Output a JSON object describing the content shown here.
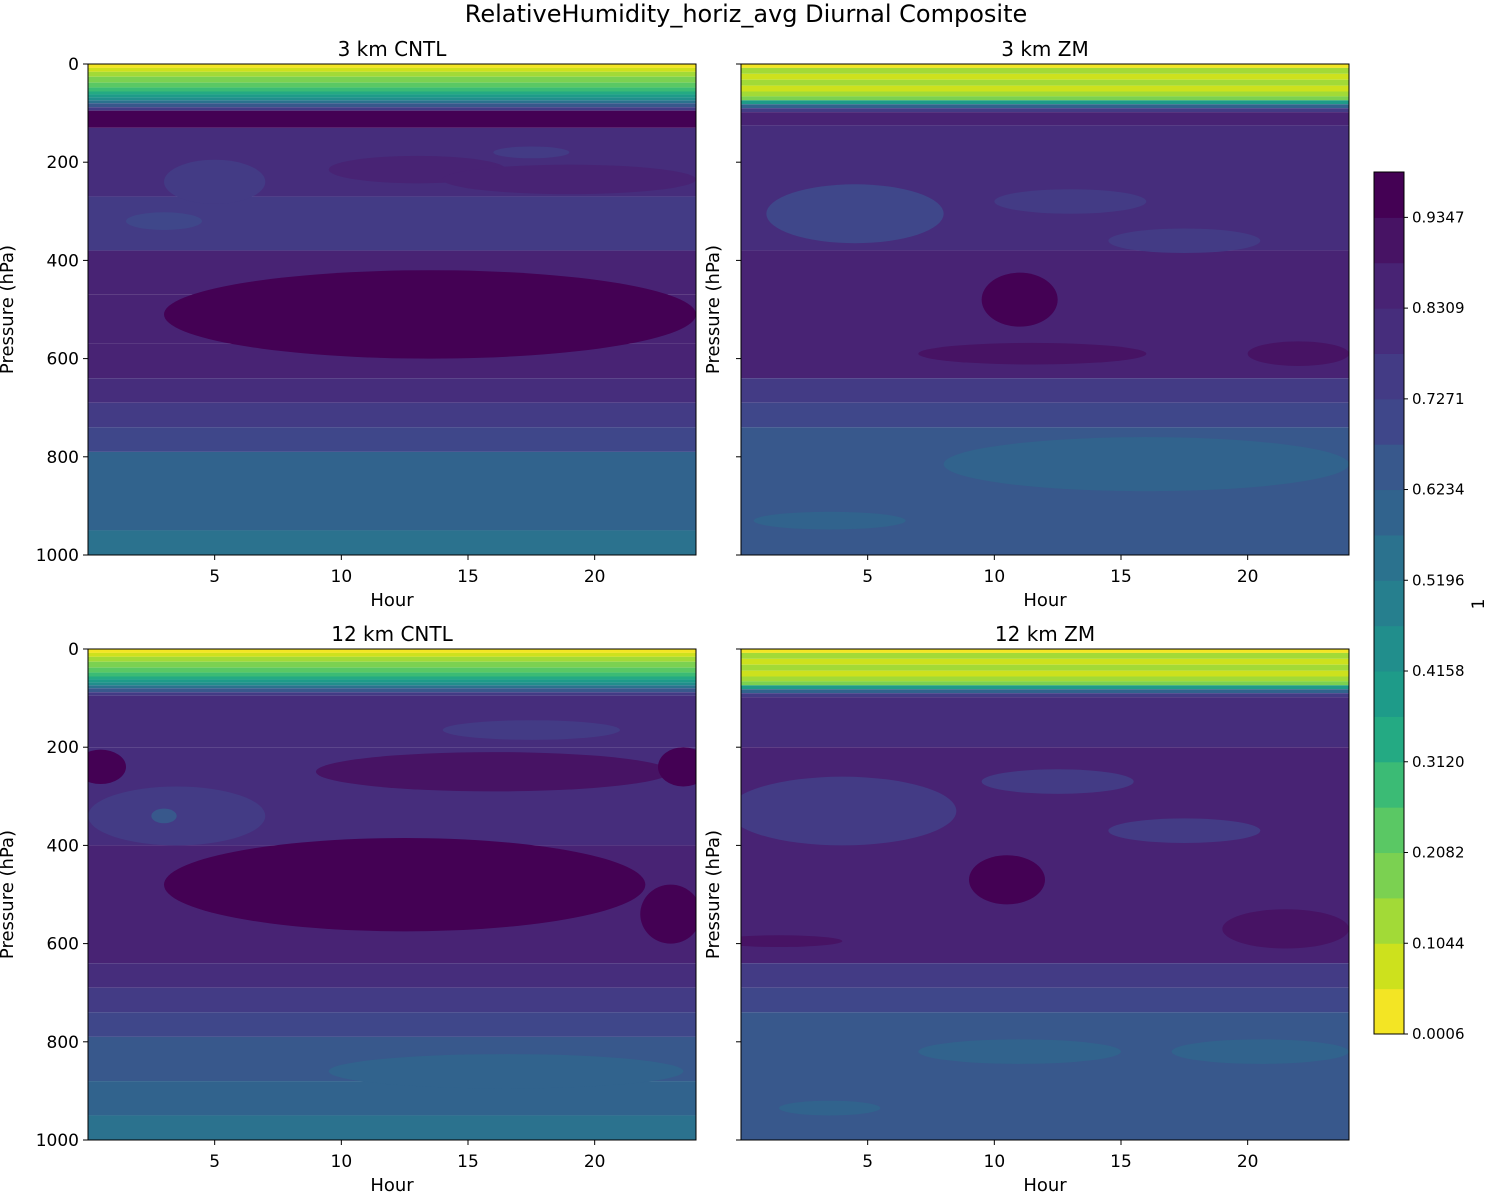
{
  "figure": {
    "suptitle": "RelativeHumidity_horiz_avg Diurnal Composite",
    "colorbar_label": "1"
  },
  "colorbar": {
    "ticks": [
      "0.0006",
      "0.1044",
      "0.2082",
      "0.3120",
      "0.4158",
      "0.5196",
      "0.6234",
      "0.7271",
      "0.8309",
      "0.9347"
    ],
    "range": [
      0.0006,
      0.9866
    ],
    "n_levels": 19,
    "colors": [
      "#f3e524",
      "#cde11d",
      "#a2da37",
      "#7bd151",
      "#5ac864",
      "#3bbb75",
      "#24aa83",
      "#1e9b89",
      "#218e8c",
      "#267f8e",
      "#2b728e",
      "#31638d",
      "#38588c",
      "#3f478a",
      "#433b85",
      "#462d7c",
      "#482374",
      "#471364",
      "#440154"
    ]
  },
  "chart_data": [
    {
      "type": "contourf",
      "panel": "3km-cntl",
      "title": "3 km CNTL",
      "xlabel": "Hour",
      "ylabel": "Pressure (hPa)",
      "xlim": [
        0,
        24
      ],
      "ylim": [
        1000,
        0
      ],
      "xticks": [
        "5",
        "10",
        "15",
        "20"
      ],
      "yticks": [
        "0",
        "200",
        "400",
        "600",
        "800",
        "1000"
      ],
      "bands": [
        {
          "p0": 0,
          "p1": 8,
          "level": 0
        },
        {
          "p0": 8,
          "p1": 16,
          "level": 1
        },
        {
          "p0": 16,
          "p1": 26,
          "level": 2
        },
        {
          "p0": 26,
          "p1": 38,
          "level": 3
        },
        {
          "p0": 38,
          "p1": 48,
          "level": 4
        },
        {
          "p0": 48,
          "p1": 56,
          "level": 5
        },
        {
          "p0": 56,
          "p1": 62,
          "level": 6
        },
        {
          "p0": 62,
          "p1": 68,
          "level": 7
        },
        {
          "p0": 68,
          "p1": 74,
          "level": 8
        },
        {
          "p0": 74,
          "p1": 80,
          "level": 10
        },
        {
          "p0": 80,
          "p1": 88,
          "level": 12
        },
        {
          "p0": 88,
          "p1": 95,
          "level": 14
        },
        {
          "p0": 95,
          "p1": 130,
          "level": 18
        },
        {
          "p0": 130,
          "p1": 270,
          "level": 15
        },
        {
          "p0": 270,
          "p1": 380,
          "level": 14
        },
        {
          "p0": 380,
          "p1": 470,
          "level": 16
        },
        {
          "p0": 470,
          "p1": 570,
          "level": 16
        },
        {
          "p0": 570,
          "p1": 640,
          "level": 16
        },
        {
          "p0": 640,
          "p1": 690,
          "level": 15
        },
        {
          "p0": 690,
          "p1": 740,
          "level": 14
        },
        {
          "p0": 740,
          "p1": 790,
          "level": 13
        },
        {
          "p0": 790,
          "p1": 950,
          "level": 11
        },
        {
          "p0": 950,
          "p1": 1000,
          "level": 10
        }
      ],
      "blobs": [
        {
          "h": 13.5,
          "p": 510,
          "rh": 10.5,
          "rp": 90,
          "level": 18
        },
        {
          "h": 13,
          "p": 215,
          "rh": 3.5,
          "rp": 28,
          "level": 16
        },
        {
          "h": 19,
          "p": 235,
          "rh": 5,
          "rp": 30,
          "level": 16
        },
        {
          "h": 5,
          "p": 240,
          "rh": 2,
          "rp": 45,
          "level": 14
        },
        {
          "h": 3,
          "p": 320,
          "rh": 1.5,
          "rp": 18,
          "level": 13
        },
        {
          "h": 17.5,
          "p": 180,
          "rh": 1.5,
          "rp": 12,
          "level": 14
        }
      ]
    },
    {
      "type": "contourf",
      "panel": "3km-zm",
      "title": "3 km ZM",
      "xlabel": "Hour",
      "ylabel": "Pressure (hPa)",
      "xlim": [
        0,
        24
      ],
      "ylim": [
        1000,
        0
      ],
      "xticks": [
        "5",
        "10",
        "15",
        "20"
      ],
      "yticks": [
        "0",
        "200",
        "400",
        "600",
        "800",
        "1000"
      ],
      "bands": [
        {
          "p0": 0,
          "p1": 8,
          "level": 0
        },
        {
          "p0": 8,
          "p1": 20,
          "level": 2
        },
        {
          "p0": 20,
          "p1": 32,
          "level": 1
        },
        {
          "p0": 32,
          "p1": 44,
          "level": 2
        },
        {
          "p0": 44,
          "p1": 56,
          "level": 1
        },
        {
          "p0": 56,
          "p1": 66,
          "level": 2
        },
        {
          "p0": 66,
          "p1": 74,
          "level": 3
        },
        {
          "p0": 74,
          "p1": 82,
          "level": 7
        },
        {
          "p0": 82,
          "p1": 90,
          "level": 11
        },
        {
          "p0": 90,
          "p1": 98,
          "level": 14
        },
        {
          "p0": 98,
          "p1": 125,
          "level": 16
        },
        {
          "p0": 125,
          "p1": 380,
          "level": 15
        },
        {
          "p0": 380,
          "p1": 640,
          "level": 16
        },
        {
          "p0": 640,
          "p1": 690,
          "level": 14
        },
        {
          "p0": 690,
          "p1": 740,
          "level": 13
        },
        {
          "p0": 740,
          "p1": 1000,
          "level": 12
        }
      ],
      "blobs": [
        {
          "h": 4.5,
          "p": 305,
          "rh": 3.5,
          "rp": 60,
          "level": 13
        },
        {
          "h": 13,
          "p": 280,
          "rh": 3,
          "rp": 25,
          "level": 14
        },
        {
          "h": 17.5,
          "p": 360,
          "rh": 3,
          "rp": 25,
          "level": 14
        },
        {
          "h": 11,
          "p": 480,
          "rh": 1.5,
          "rp": 55,
          "level": 18
        },
        {
          "h": 11.5,
          "p": 590,
          "rh": 4.5,
          "rp": 22,
          "level": 17
        },
        {
          "h": 22,
          "p": 590,
          "rh": 2,
          "rp": 25,
          "level": 17
        },
        {
          "h": 16,
          "p": 815,
          "rh": 8,
          "rp": 55,
          "level": 11
        },
        {
          "h": 3.5,
          "p": 930,
          "rh": 3,
          "rp": 18,
          "level": 11
        }
      ]
    },
    {
      "type": "contourf",
      "panel": "12km-cntl",
      "title": "12 km CNTL",
      "xlabel": "Hour",
      "ylabel": "Pressure (hPa)",
      "xlim": [
        0,
        24
      ],
      "ylim": [
        1000,
        0
      ],
      "xticks": [
        "5",
        "10",
        "15",
        "20"
      ],
      "yticks": [
        "0",
        "200",
        "400",
        "600",
        "800",
        "1000"
      ],
      "bands": [
        {
          "p0": 0,
          "p1": 8,
          "level": 0
        },
        {
          "p0": 8,
          "p1": 16,
          "level": 1
        },
        {
          "p0": 16,
          "p1": 26,
          "level": 2
        },
        {
          "p0": 26,
          "p1": 38,
          "level": 3
        },
        {
          "p0": 38,
          "p1": 48,
          "level": 4
        },
        {
          "p0": 48,
          "p1": 56,
          "level": 5
        },
        {
          "p0": 56,
          "p1": 62,
          "level": 6
        },
        {
          "p0": 62,
          "p1": 68,
          "level": 7
        },
        {
          "p0": 68,
          "p1": 74,
          "level": 8
        },
        {
          "p0": 74,
          "p1": 80,
          "level": 10
        },
        {
          "p0": 80,
          "p1": 88,
          "level": 12
        },
        {
          "p0": 88,
          "p1": 95,
          "level": 14
        },
        {
          "p0": 95,
          "p1": 200,
          "level": 15
        },
        {
          "p0": 200,
          "p1": 400,
          "level": 15
        },
        {
          "p0": 400,
          "p1": 640,
          "level": 16
        },
        {
          "p0": 640,
          "p1": 690,
          "level": 15
        },
        {
          "p0": 690,
          "p1": 740,
          "level": 14
        },
        {
          "p0": 740,
          "p1": 790,
          "level": 13
        },
        {
          "p0": 790,
          "p1": 880,
          "level": 12
        },
        {
          "p0": 880,
          "p1": 950,
          "level": 11
        },
        {
          "p0": 950,
          "p1": 1000,
          "level": 10
        }
      ],
      "blobs": [
        {
          "h": 12.5,
          "p": 480,
          "rh": 9.5,
          "rp": 95,
          "level": 18
        },
        {
          "h": 16,
          "p": 250,
          "rh": 7,
          "rp": 40,
          "level": 17
        },
        {
          "h": 3.5,
          "p": 340,
          "rh": 3.5,
          "rp": 60,
          "level": 14
        },
        {
          "h": 3,
          "p": 340,
          "rh": 0.5,
          "rp": 15,
          "level": 12
        },
        {
          "h": 23,
          "p": 540,
          "rh": 1.2,
          "rp": 60,
          "level": 18
        },
        {
          "h": 23.5,
          "p": 240,
          "rh": 1,
          "rp": 40,
          "level": 18
        },
        {
          "h": 0.5,
          "p": 240,
          "rh": 1,
          "rp": 35,
          "level": 18
        },
        {
          "h": 17.5,
          "p": 165,
          "rh": 3.5,
          "rp": 20,
          "level": 14
        },
        {
          "h": 16.5,
          "p": 860,
          "rh": 7,
          "rp": 35,
          "level": 11
        }
      ]
    },
    {
      "type": "contourf",
      "panel": "12km-zm",
      "title": "12 km ZM",
      "xlabel": "Hour",
      "ylabel": "Pressure (hPa)",
      "xlim": [
        0,
        24
      ],
      "ylim": [
        1000,
        0
      ],
      "xticks": [
        "5",
        "10",
        "15",
        "20"
      ],
      "yticks": [
        "0",
        "200",
        "400",
        "600",
        "800",
        "1000"
      ],
      "bands": [
        {
          "p0": 0,
          "p1": 8,
          "level": 0
        },
        {
          "p0": 8,
          "p1": 20,
          "level": 2
        },
        {
          "p0": 20,
          "p1": 32,
          "level": 1
        },
        {
          "p0": 32,
          "p1": 44,
          "level": 2
        },
        {
          "p0": 44,
          "p1": 56,
          "level": 1
        },
        {
          "p0": 56,
          "p1": 66,
          "level": 2
        },
        {
          "p0": 66,
          "p1": 74,
          "level": 3
        },
        {
          "p0": 74,
          "p1": 82,
          "level": 7
        },
        {
          "p0": 82,
          "p1": 90,
          "level": 11
        },
        {
          "p0": 90,
          "p1": 98,
          "level": 14
        },
        {
          "p0": 98,
          "p1": 200,
          "level": 15
        },
        {
          "p0": 200,
          "p1": 640,
          "level": 16
        },
        {
          "p0": 640,
          "p1": 690,
          "level": 14
        },
        {
          "p0": 690,
          "p1": 740,
          "level": 13
        },
        {
          "p0": 740,
          "p1": 1000,
          "level": 12
        }
      ],
      "blobs": [
        {
          "h": 4,
          "p": 330,
          "rh": 4.5,
          "rp": 70,
          "level": 14
        },
        {
          "h": 12.5,
          "p": 270,
          "rh": 3,
          "rp": 25,
          "level": 14
        },
        {
          "h": 17.5,
          "p": 370,
          "rh": 3,
          "rp": 25,
          "level": 14
        },
        {
          "h": 10.5,
          "p": 470,
          "rh": 1.5,
          "rp": 50,
          "level": 18
        },
        {
          "h": 21.5,
          "p": 570,
          "rh": 2.5,
          "rp": 40,
          "level": 17
        },
        {
          "h": 1.5,
          "p": 595,
          "rh": 2.5,
          "rp": 12,
          "level": 17
        },
        {
          "h": 11,
          "p": 820,
          "rh": 4,
          "rp": 25,
          "level": 11
        },
        {
          "h": 20.5,
          "p": 820,
          "rh": 3.5,
          "rp": 25,
          "level": 11
        },
        {
          "h": 3.5,
          "p": 935,
          "rh": 2,
          "rp": 15,
          "level": 11
        }
      ]
    }
  ]
}
